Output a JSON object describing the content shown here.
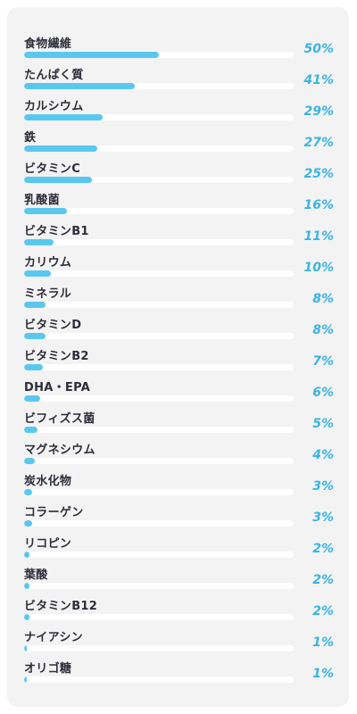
{
  "colors": {
    "bar": "#5ac8ee",
    "value_text": "#3ab4e4",
    "label_text": "#2d2d3a",
    "track": "#ffffff",
    "card": "#f3f3f3"
  },
  "chart_data": {
    "type": "bar",
    "orientation": "horizontal",
    "title": "",
    "xlabel": "",
    "ylabel": "",
    "xlim": [
      0,
      100
    ],
    "value_suffix": "%",
    "grid": false,
    "legend": "none",
    "categories": [
      "食物繊維",
      "たんぱく質",
      "カルシウム",
      "鉄",
      "ビタミンC",
      "乳酸菌",
      "ビタミンB1",
      "カリウム",
      "ミネラル",
      "ビタミンD",
      "ビタミンB2",
      "DHA・EPA",
      "ビフィズス菌",
      "マグネシウム",
      "炭水化物",
      "コラーゲン",
      "リコピン",
      "葉酸",
      "ビタミンB12",
      "ナイアシン",
      "オリゴ糖"
    ],
    "values": [
      50,
      41,
      29,
      27,
      25,
      16,
      11,
      10,
      8,
      8,
      7,
      6,
      5,
      4,
      3,
      3,
      2,
      2,
      2,
      1,
      1
    ],
    "value_labels": [
      "50%",
      "41%",
      "29%",
      "27%",
      "25%",
      "16%",
      "11%",
      "10%",
      "8%",
      "8%",
      "7%",
      "6%",
      "5%",
      "4%",
      "3%",
      "3%",
      "2%",
      "2%",
      "2%",
      "1%",
      "1%"
    ]
  }
}
